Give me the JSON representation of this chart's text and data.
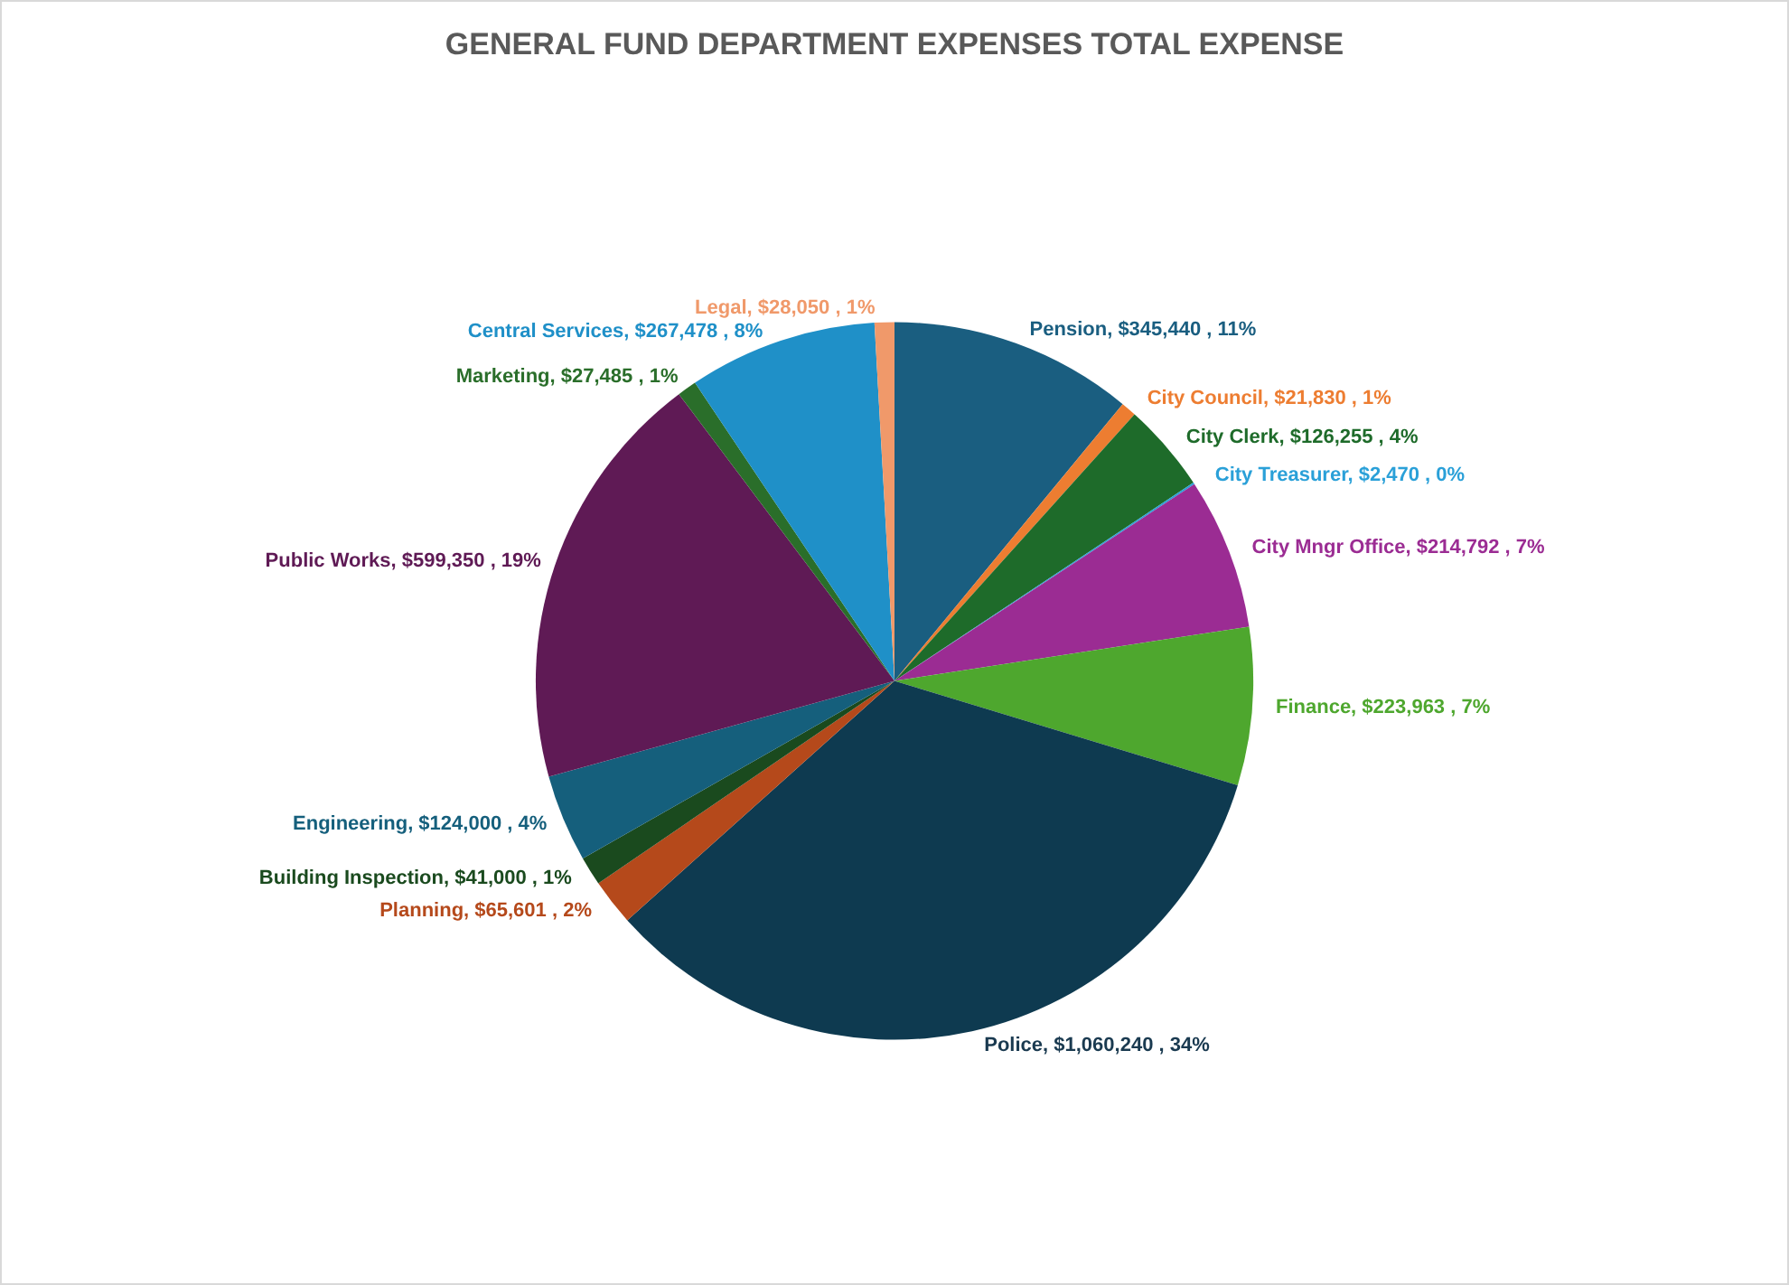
{
  "chart_data": {
    "type": "pie",
    "title": "GENERAL FUND DEPARTMENT EXPENSES TOTAL EXPENSE",
    "categories": [
      "Pension",
      "City Council",
      "City Clerk",
      "City Treasurer",
      "City Mngr Office",
      "Finance",
      "Police",
      "Planning",
      "Building Inspection",
      "Engineering",
      "Public Works",
      "Marketing",
      "Central Services",
      "Legal"
    ],
    "values": [
      345440,
      21830,
      126255,
      2470,
      214792,
      223963,
      1060240,
      65601,
      41000,
      124000,
      599350,
      27485,
      267478,
      28050
    ],
    "value_labels": [
      "$345,440 , 11%",
      "$21,830 , 1%",
      "$126,255 , 4%",
      "$2,470 , 0%",
      "$214,792 , 7%",
      "$223,963 , 7%",
      "$1,060,240 , 34%",
      "$65,601 , 2%",
      "$41,000 , 1%",
      "$124,000 , 4%",
      "$599,350 , 19%",
      "$27,485 , 1%",
      "$267,478 , 8%",
      "$28,050 , 1%"
    ],
    "colors": [
      "#1a5e80",
      "#ed7d31",
      "#1e6b2a",
      "#2aa0d8",
      "#9b2c93",
      "#4ea72e",
      "#0e3a50",
      "#b5491b",
      "#1a4a1e",
      "#155f7c",
      "#5f1a55",
      "#2a6e2a",
      "#1f90c8",
      "#f0996a"
    ],
    "legend": false
  }
}
